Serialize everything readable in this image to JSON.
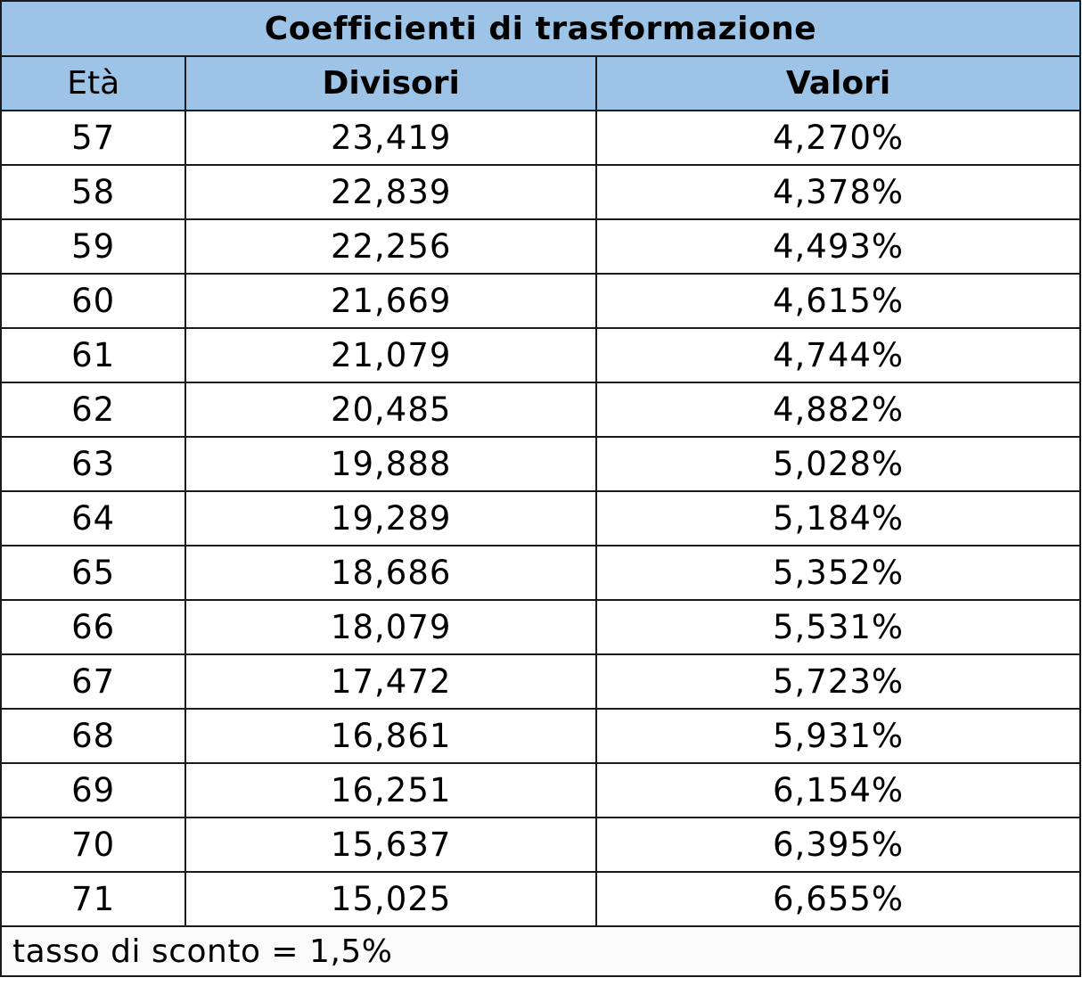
{
  "accent_color": "#9dc3e6",
  "chart_data": {
    "type": "table",
    "title": "Coefficienti di trasformazione",
    "columns": [
      "Età",
      "Divisori",
      "Valori"
    ],
    "rows": [
      [
        "57",
        "23,419",
        "4,270%"
      ],
      [
        "58",
        "22,839",
        "4,378%"
      ],
      [
        "59",
        "22,256",
        "4,493%"
      ],
      [
        "60",
        "21,669",
        "4,615%"
      ],
      [
        "61",
        "21,079",
        "4,744%"
      ],
      [
        "62",
        "20,485",
        "4,882%"
      ],
      [
        "63",
        "19,888",
        "5,028%"
      ],
      [
        "64",
        "19,289",
        "5,184%"
      ],
      [
        "65",
        "18,686",
        "5,352%"
      ],
      [
        "66",
        "18,079",
        "5,531%"
      ],
      [
        "67",
        "17,472",
        "5,723%"
      ],
      [
        "68",
        "16,861",
        "5,931%"
      ],
      [
        "69",
        "16,251",
        "6,154%"
      ],
      [
        "70",
        "15,637",
        "6,395%"
      ],
      [
        "71",
        "15,025",
        "6,655%"
      ]
    ],
    "footnote": "tasso di sconto = 1,5%"
  }
}
